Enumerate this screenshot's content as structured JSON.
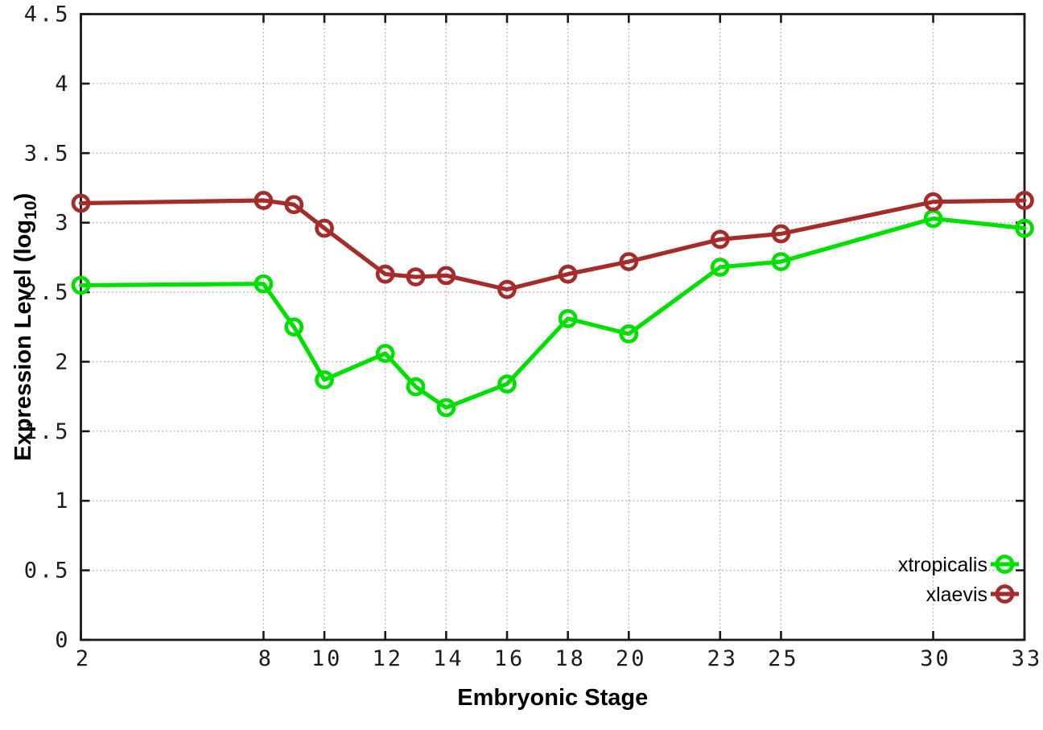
{
  "page": {
    "background": "#ffffff"
  },
  "chart_data": {
    "type": "line",
    "x": [
      2,
      8,
      9,
      10,
      12,
      13,
      14,
      16,
      18,
      20,
      23,
      25,
      30,
      33
    ],
    "series": [
      {
        "name": "xtropicalis",
        "color": "#00e000",
        "values": [
          2.55,
          2.56,
          2.25,
          1.87,
          2.06,
          1.82,
          1.67,
          1.84,
          2.31,
          2.2,
          2.68,
          2.72,
          3.03,
          2.96
        ]
      },
      {
        "name": "xlaevis",
        "color": "#a62b2b",
        "values": [
          3.14,
          3.16,
          3.13,
          2.96,
          2.63,
          2.61,
          2.62,
          2.52,
          2.63,
          2.72,
          2.88,
          2.92,
          3.15,
          3.16
        ]
      }
    ],
    "title": "",
    "xlabel": "Embryonic Stage",
    "ylabel_prefix": "Expression Level (log",
    "ylabel_sub": "10",
    "ylabel_suffix": ")",
    "xlim": [
      2,
      33
    ],
    "ylim": [
      0,
      4.5
    ],
    "xticks": [
      2,
      8,
      10,
      12,
      14,
      16,
      18,
      20,
      23,
      25,
      30,
      33
    ],
    "yticks": [
      0,
      0.5,
      1,
      1.5,
      2,
      2.5,
      3,
      3.5,
      4,
      4.5
    ],
    "ytick_labels": [
      "0",
      "0.5",
      "1",
      "1.5",
      "2",
      "2.5",
      "3",
      "3.5",
      "4",
      "4.5"
    ],
    "grid": true,
    "grid_style": "dotted",
    "legend_position": "bottom-right",
    "colors": {
      "grid": "#a8a8a8",
      "border": "#1a1a1a",
      "background": "#ffffff"
    }
  }
}
